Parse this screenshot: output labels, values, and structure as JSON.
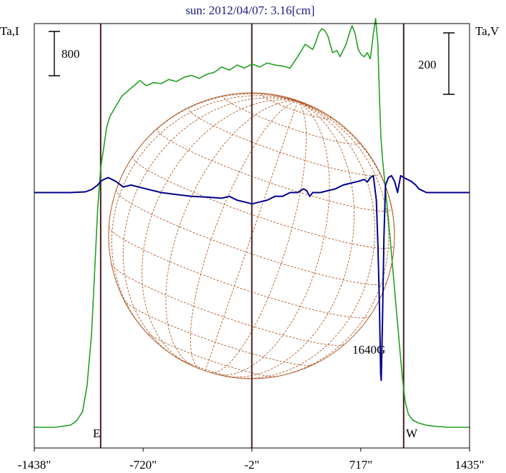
{
  "chart_data": {
    "type": "line",
    "title": "sun: 2012/04/07: 3.16[cm]",
    "left_axis_label": "Ta,I",
    "right_axis_label": "Ta,V",
    "x_ticks": [
      {
        "value": -1438,
        "label": "-1438\""
      },
      {
        "value": -720,
        "label": "-720\""
      },
      {
        "value": -2,
        "label": "-2\""
      },
      {
        "value": 717,
        "label": "717\""
      },
      {
        "value": 1435,
        "label": "1435\""
      }
    ],
    "xlim": [
      -1438,
      1435
    ],
    "limb_markers": [
      {
        "x": -1000,
        "label": "E"
      },
      {
        "x": -2,
        "label": ""
      },
      {
        "x": 1000,
        "label": "W"
      }
    ],
    "scale_bars": [
      {
        "side": "left",
        "label": "800",
        "value": 800
      },
      {
        "side": "right",
        "label": "200",
        "value": 200
      }
    ],
    "annotation": {
      "label": "1640G",
      "x": 850
    },
    "colors": {
      "title": "#1a1a80",
      "stokes_I": "#22a022",
      "stokes_V": "#00008b",
      "limbs": "#4a1e1e",
      "disk": "#b05a28",
      "frame": "#000000"
    },
    "series": [
      {
        "key": "I",
        "color": "#22a022",
        "axis": "left",
        "ylim": [
          -200,
          3900
        ],
        "x": [
          -1438,
          -1300,
          -1200,
          -1160,
          -1120,
          -1090,
          -1060,
          -1040,
          -1020,
          -1000,
          -980,
          -960,
          -940,
          -900,
          -860,
          -820,
          -780,
          -740,
          -700,
          -650,
          -600,
          -550,
          -500,
          -450,
          -400,
          -350,
          -300,
          -250,
          -200,
          -150,
          -100,
          -50,
          0,
          50,
          100,
          150,
          200,
          250,
          300,
          350,
          400,
          420,
          440,
          460,
          480,
          500,
          530,
          560,
          580,
          600,
          620,
          640,
          660,
          680,
          700,
          720,
          740,
          760,
          780,
          800,
          815,
          830,
          840,
          850,
          860,
          880,
          900,
          930,
          960,
          990,
          1010,
          1030,
          1060,
          1100,
          1150,
          1200,
          1300,
          1435
        ],
        "y": [
          0,
          0,
          20,
          60,
          150,
          400,
          900,
          1500,
          2100,
          2500,
          2700,
          2900,
          3000,
          3100,
          3200,
          3250,
          3300,
          3350,
          3300,
          3330,
          3320,
          3360,
          3340,
          3380,
          3400,
          3370,
          3410,
          3430,
          3480,
          3450,
          3500,
          3470,
          3510,
          3480,
          3520,
          3500,
          3490,
          3470,
          3580,
          3700,
          3650,
          3720,
          3810,
          3850,
          3830,
          3780,
          3620,
          3640,
          3580,
          3640,
          3700,
          3800,
          3880,
          3800,
          3650,
          3600,
          3580,
          3620,
          3560,
          3800,
          3950,
          3700,
          3200,
          2800,
          2600,
          2300,
          2000,
          1500,
          1000,
          500,
          250,
          130,
          70,
          40,
          20,
          10,
          0,
          0
        ]
      },
      {
        "key": "V",
        "color": "#00008b",
        "axis": "right",
        "ylim": [
          -680,
          450
        ],
        "x": [
          -1438,
          -1300,
          -1200,
          -1100,
          -1060,
          -1020,
          -1000,
          -980,
          -950,
          -900,
          -850,
          -800,
          -700,
          -600,
          -500,
          -400,
          -300,
          -200,
          -150,
          -100,
          -50,
          0,
          50,
          100,
          150,
          200,
          250,
          300,
          320,
          340,
          360,
          380,
          400,
          450,
          500,
          550,
          600,
          650,
          700,
          740,
          760,
          780,
          800,
          820,
          830,
          840,
          848,
          852,
          860,
          870,
          880,
          900,
          920,
          940,
          960,
          980,
          1000,
          1050,
          1080,
          1100,
          1150,
          1200,
          1300,
          1435
        ],
        "y": [
          0,
          0,
          0,
          2,
          8,
          20,
          30,
          35,
          40,
          30,
          15,
          20,
          10,
          0,
          -5,
          -10,
          -12,
          -15,
          -10,
          -20,
          -25,
          -30,
          -25,
          -20,
          -10,
          -10,
          0,
          0,
          5,
          10,
          5,
          -10,
          0,
          0,
          5,
          10,
          20,
          25,
          30,
          35,
          28,
          40,
          45,
          -20,
          -140,
          -300,
          -480,
          -500,
          -350,
          -120,
          20,
          40,
          45,
          30,
          0,
          45,
          40,
          30,
          20,
          10,
          0,
          0,
          0,
          0
        ]
      }
    ]
  }
}
